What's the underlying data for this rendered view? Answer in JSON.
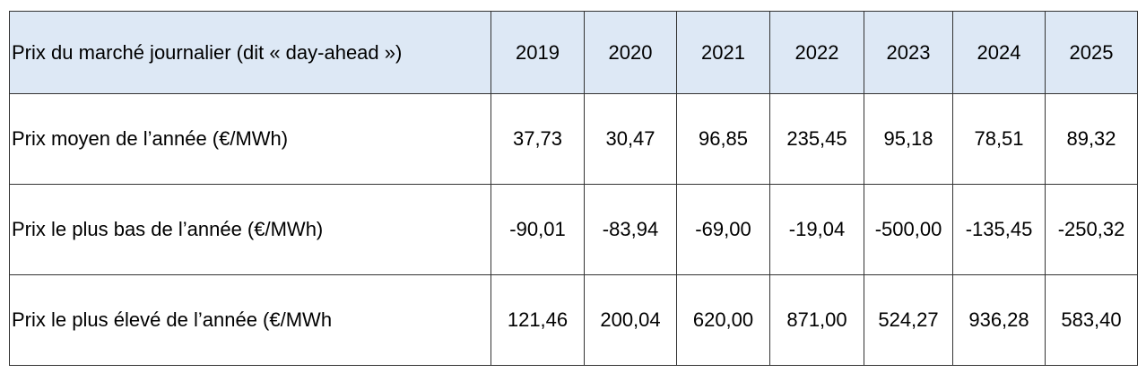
{
  "table": {
    "header": [
      "Prix du marché journalier (dit « day-ahead »)",
      "2019",
      "2020",
      "2021",
      "2022",
      "2023",
      "2024",
      "2025"
    ],
    "rows": [
      [
        "Prix moyen de l’année (€/MWh)",
        "37,73",
        "30,47",
        "96,85",
        "235,45",
        "95,18",
        "78,51",
        "89,32"
      ],
      [
        "Prix le plus bas de l’année (€/MWh)",
        "-90,01",
        "-83,94",
        "-69,00",
        "-19,04",
        "-500,00",
        "-135,45",
        "-250,32"
      ],
      [
        "Prix le plus élevé de l’année (€/MWh",
        "121,46",
        "200,04",
        "620,00",
        "871,00",
        "524,27",
        "936,28",
        "583,40"
      ]
    ]
  }
}
